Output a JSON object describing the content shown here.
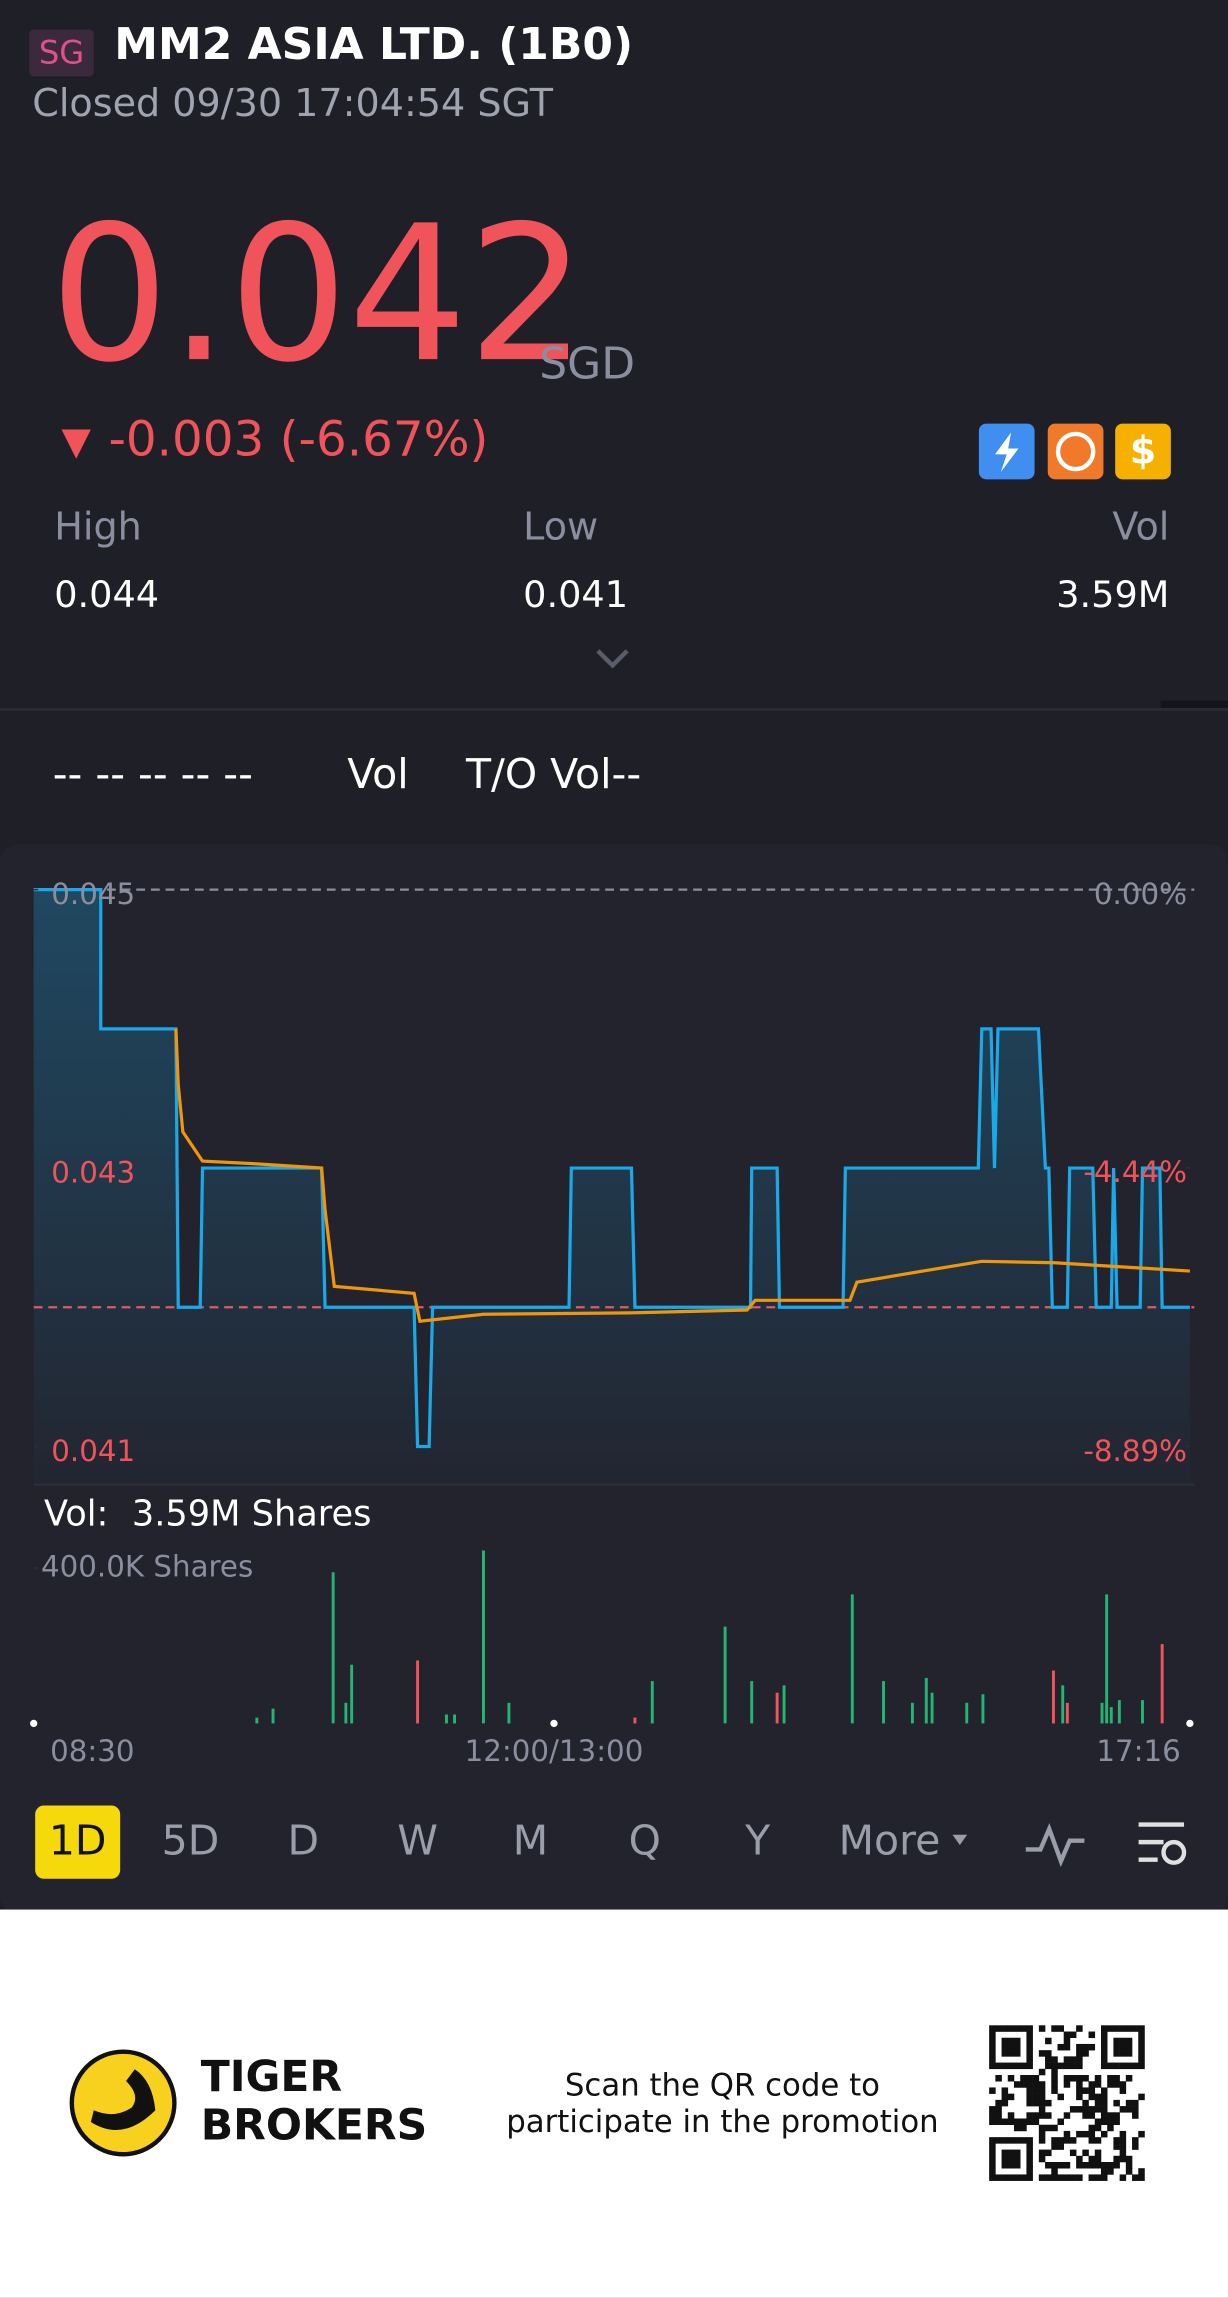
{
  "header": {
    "badge": "SG",
    "name": "MM2 ASIA LTD. (1B0)",
    "status": "Closed 09/30 17:04:54 SGT"
  },
  "quote": {
    "price": "0.042",
    "currency": "SGD",
    "change": "-0.003 (-6.67%)"
  },
  "stats": [
    {
      "label": "High",
      "value": "0.044"
    },
    {
      "label": "Low",
      "value": "0.041"
    },
    {
      "label": "Vol",
      "value": "3.59M"
    }
  ],
  "indicators": {
    "dashes": "-- -- -- -- --",
    "vol": "Vol",
    "to_vol": "T/O Vol--"
  },
  "chart_data": [
    {
      "type": "line",
      "xlim": [
        0,
        100
      ],
      "ylim": [
        0.041,
        0.045
      ],
      "yticks": [
        0.045,
        0.043,
        0.041
      ],
      "y2lim": [
        -8.89,
        0
      ],
      "y2ticks": [
        {
          "value": 0,
          "label": "0.00%"
        },
        {
          "value": -4.44,
          "label": "-4.44%"
        },
        {
          "value": -8.89,
          "label": "-8.89%"
        }
      ],
      "hlines": [
        {
          "value": 0.045,
          "color": "#8a8e9e"
        },
        {
          "value": 0.042,
          "color": "#f0545a"
        }
      ],
      "series": [
        {
          "color": "#1aa8e8",
          "area": true,
          "x": [
            0,
            5.8,
            5.8,
            12.3,
            12.5,
            14.4,
            14.6,
            24.9,
            25.2,
            32.9,
            33.2,
            34.2,
            34.5,
            46.3,
            46.5,
            51.7,
            52.0,
            62.0,
            62.1,
            64.3,
            64.5,
            70.0,
            70.2,
            81.7,
            82.0,
            82.8,
            83.1,
            83.4,
            86.9,
            87.5,
            87.8,
            88.1,
            89.4,
            89.6,
            91.6,
            91.9,
            93.2,
            93.4,
            93.7,
            95.7,
            95.9,
            97.4,
            97.6,
            100
          ],
          "values": [
            0.045,
            0.045,
            0.044,
            0.044,
            0.042,
            0.042,
            0.043,
            0.043,
            0.042,
            0.042,
            0.041,
            0.041,
            0.042,
            0.042,
            0.043,
            0.043,
            0.042,
            0.042,
            0.043,
            0.043,
            0.042,
            0.042,
            0.043,
            0.043,
            0.044,
            0.044,
            0.043,
            0.044,
            0.044,
            0.043,
            0.043,
            0.042,
            0.042,
            0.043,
            0.043,
            0.042,
            0.042,
            0.043,
            0.042,
            0.042,
            0.043,
            0.043,
            0.042,
            0.042
          ]
        },
        {
          "color": "#f0960a",
          "area": false,
          "x": [
            12.3,
            12.5,
            12.9,
            14.6,
            19.3,
            24.9,
            25.2,
            26.0,
            32.9,
            33.4,
            38.9,
            51.6,
            61.7,
            62.4,
            70.6,
            71.2,
            76.9,
            82.0,
            88.3,
            100
          ],
          "values": [
            0.044,
            0.0436,
            0.04326,
            0.04305,
            0.04303,
            0.043,
            0.0427,
            0.04215,
            0.0421,
            0.0419,
            0.04195,
            0.04196,
            0.04198,
            0.04205,
            0.04205,
            0.04218,
            0.04226,
            0.04233,
            0.04232,
            0.04226
          ]
        }
      ]
    },
    {
      "type": "bar",
      "title": "Vol:",
      "total": "3.59M Shares",
      "xlim": [
        0,
        100
      ],
      "ylim": [
        0,
        475000
      ],
      "yticks": [
        {
          "value": 400000,
          "label": "400.0K Shares"
        }
      ],
      "xticks": [
        {
          "value": 0,
          "label": "08:30"
        },
        {
          "value": 45,
          "label": "12:00/13:00"
        },
        {
          "value": 100,
          "label": "17:16"
        }
      ],
      "x": [
        19.3,
        20.7,
        25.9,
        27.0,
        27.5,
        33.2,
        35.7,
        36.4,
        38.9,
        41.1,
        52.0,
        53.5,
        59.8,
        62.1,
        64.3,
        64.9,
        70.8,
        73.5,
        76.0,
        77.2,
        77.7,
        80.7,
        82.1,
        88.2,
        89.0,
        89.4,
        92.4,
        92.8,
        93.2,
        93.9,
        95.9,
        97.6
      ],
      "values": [
        15000,
        38000,
        389000,
        53000,
        151000,
        162000,
        23000,
        23000,
        445000,
        53000,
        15000,
        109000,
        249000,
        109000,
        79000,
        98000,
        332000,
        109000,
        53000,
        117000,
        79000,
        53000,
        75000,
        136000,
        98000,
        53000,
        53000,
        332000,
        42000,
        60000,
        60000,
        204000
      ],
      "colors": [
        "#22b573",
        "#22b573",
        "#22b573",
        "#22b573",
        "#22b573",
        "#f0545a",
        "#22b573",
        "#22b573",
        "#22b573",
        "#22b573",
        "#f0545a",
        "#22b573",
        "#22b573",
        "#22b573",
        "#f0545a",
        "#22b573",
        "#22b573",
        "#22b573",
        "#22b573",
        "#22b573",
        "#22b573",
        "#22b573",
        "#22b573",
        "#f0545a",
        "#22b573",
        "#f0545a",
        "#22b573",
        "#22b573",
        "#22b573",
        "#22b573",
        "#22b573",
        "#f0545a"
      ]
    }
  ],
  "periods": [
    "1D",
    "5D",
    "D",
    "W",
    "M",
    "Q",
    "Y",
    "More"
  ],
  "footer": {
    "brand": [
      "TIGER",
      "BROKERS"
    ],
    "promo": [
      "Scan the QR code to",
      "participate in the promotion"
    ]
  }
}
